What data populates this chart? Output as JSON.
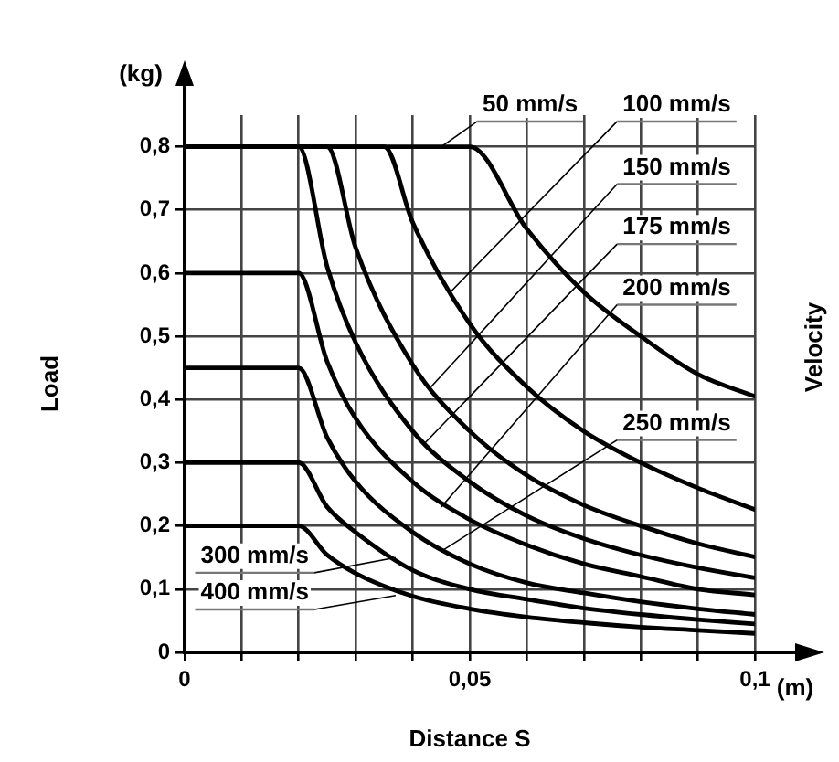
{
  "chart_data": {
    "type": "line",
    "xlabel": "Distance S",
    "ylabel": "Load",
    "xlim": [
      0,
      0.1
    ],
    "ylim": [
      0,
      0.85
    ],
    "xticks": [
      {
        "value": 0,
        "label": "0"
      },
      {
        "value": 0.01,
        "label": null
      },
      {
        "value": 0.02,
        "label": null
      },
      {
        "value": 0.03,
        "label": null
      },
      {
        "value": 0.04,
        "label": null
      },
      {
        "value": 0.05,
        "label": "0,05"
      },
      {
        "value": 0.06,
        "label": null
      },
      {
        "value": 0.07,
        "label": null
      },
      {
        "value": 0.08,
        "label": null
      },
      {
        "value": 0.09,
        "label": null
      },
      {
        "value": 0.1,
        "label": "0,1"
      }
    ],
    "yticks": [
      0,
      {
        "value": 0.1,
        "label": "0,1"
      },
      {
        "value": 0.2,
        "label": "0,2"
      },
      {
        "value": 0.3,
        "label": "0,3"
      },
      {
        "value": 0.4,
        "label": "0,4"
      },
      {
        "value": 0.5,
        "label": "0,5"
      },
      {
        "value": 0.6,
        "label": "0,6"
      },
      {
        "value": 0.7,
        "label": "0,7"
      },
      {
        "value": 0.8,
        "label": "0,8"
      }
    ],
    "grid": true,
    "marker": "none",
    "series": [
      {
        "color": "#000000",
        "x": [
          0,
          0.05,
          0.06,
          0.07,
          0.08,
          0.09,
          0.1
        ],
        "values": [
          0.8,
          0.8,
          0.67,
          0.57,
          0.5,
          0.44,
          0.405
        ]
      },
      {
        "color": "#000000",
        "x": [
          0,
          0.035,
          0.04,
          0.05,
          0.06,
          0.07,
          0.08,
          0.09,
          0.1
        ],
        "values": [
          0.8,
          0.8,
          0.68,
          0.52,
          0.42,
          0.35,
          0.3,
          0.26,
          0.226
        ]
      },
      {
        "color": "#000000",
        "x": [
          0,
          0.025,
          0.03,
          0.04,
          0.05,
          0.06,
          0.07,
          0.08,
          0.09,
          0.1
        ],
        "values": [
          0.8,
          0.8,
          0.64,
          0.455,
          0.35,
          0.28,
          0.233,
          0.2,
          0.172,
          0.151
        ]
      },
      {
        "color": "#000000",
        "x": [
          0,
          0.02,
          0.025,
          0.03,
          0.04,
          0.05,
          0.06,
          0.07,
          0.08,
          0.09,
          0.1
        ],
        "values": [
          0.8,
          0.8,
          0.61,
          0.49,
          0.35,
          0.27,
          0.216,
          0.18,
          0.154,
          0.134,
          0.118
        ]
      },
      {
        "color": "#000000",
        "x": [
          0,
          0.02,
          0.025,
          0.03,
          0.04,
          0.05,
          0.06,
          0.07,
          0.08,
          0.09,
          0.1
        ],
        "values": [
          0.6,
          0.6,
          0.46,
          0.37,
          0.27,
          0.21,
          0.17,
          0.14,
          0.12,
          0.1,
          0.091
        ]
      },
      {
        "color": "#000000",
        "x": [
          0,
          0.02,
          0.025,
          0.03,
          0.04,
          0.05,
          0.06,
          0.07,
          0.08,
          0.09,
          0.1
        ],
        "values": [
          0.45,
          0.45,
          0.34,
          0.27,
          0.19,
          0.14,
          0.11,
          0.094,
          0.08,
          0.069,
          0.06
        ]
      },
      {
        "color": "#000000",
        "x": [
          0,
          0.02,
          0.025,
          0.03,
          0.04,
          0.05,
          0.06,
          0.07,
          0.08,
          0.09,
          0.1
        ],
        "values": [
          0.3,
          0.3,
          0.23,
          0.19,
          0.13,
          0.1,
          0.084,
          0.07,
          0.06,
          0.052,
          0.045
        ]
      },
      {
        "color": "#000000",
        "x": [
          0,
          0.02,
          0.025,
          0.03,
          0.04,
          0.05,
          0.06,
          0.07,
          0.08,
          0.09,
          0.1
        ],
        "values": [
          0.2,
          0.2,
          0.154,
          0.125,
          0.089,
          0.069,
          0.056,
          0.047,
          0.04,
          0.035,
          0.03
        ]
      }
    ],
    "annotations": [
      {
        "text": "50 mm/s",
        "x": 0.045,
        "y": 0.8
      },
      {
        "text": "100 mm/s",
        "x": 0.0466,
        "y": 0.57
      },
      {
        "text": "150 mm/s",
        "x": 0.0432,
        "y": 0.42
      },
      {
        "text": "175 mm/s",
        "x": 0.042,
        "y": 0.33
      },
      {
        "text": "200 mm/s",
        "x": 0.045,
        "y": 0.23
      },
      {
        "text": "250 mm/s",
        "x": 0.045,
        "y": 0.16
      },
      {
        "text": "300 mm/s",
        "x": 0.037,
        "y": 0.15
      },
      {
        "text": "400 mm/s",
        "x": 0.037,
        "y": 0.09
      },
      "(kg)",
      "(m)",
      "Velocity"
    ]
  }
}
